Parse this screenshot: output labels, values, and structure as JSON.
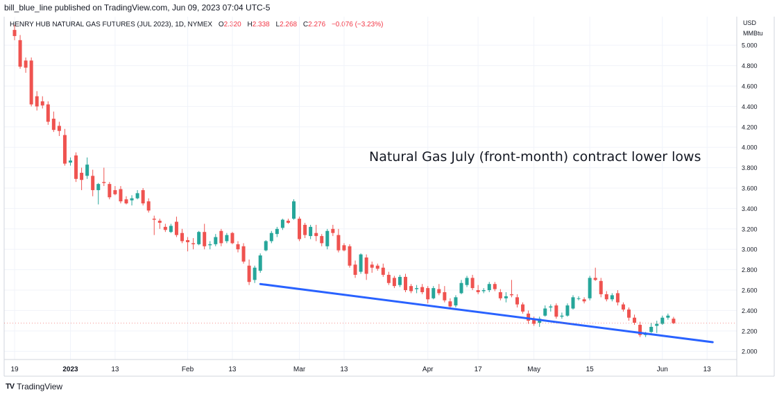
{
  "header": {
    "text": "bill_blue_line published on TradingView.com, Jun 09, 2023 07:04 UTC-5"
  },
  "legend": {
    "symbol": "HENRY HUB NATURAL GAS FUTURES (JUL 2023), 1D, NYMEX",
    "o_label": "O",
    "o": "2.320",
    "h_label": "H",
    "h": "2.338",
    "l_label": "L",
    "l": "2.268",
    "c_label": "C",
    "c": "2.276",
    "change": "−0.076 (−3.23%)"
  },
  "footer": {
    "logo": "TV",
    "brand": "TradingView"
  },
  "colors": {
    "up": "#26a69a",
    "down": "#ef5350",
    "trendline": "#2962ff",
    "grid": "#f0f3fa",
    "axis_text": "#131722"
  },
  "chart_data": {
    "type": "candlestick",
    "title": "",
    "annotation": "Natural Gas July (front-month) contract lower lows",
    "y_unit_line1": "USD",
    "y_unit_line2": "MMBtu",
    "ylim": [
      1.92,
      5.28
    ],
    "y_ticks": [
      "5.000",
      "4.800",
      "4.600",
      "4.400",
      "4.200",
      "4.000",
      "3.800",
      "3.600",
      "3.400",
      "3.200",
      "3.000",
      "2.800",
      "2.600",
      "2.400",
      "2.200",
      "2.000"
    ],
    "x_ticks": [
      {
        "label": "19",
        "i": 0
      },
      {
        "label": "2023",
        "i": 10
      },
      {
        "label": "13",
        "i": 18
      },
      {
        "label": "Feb",
        "i": 31
      },
      {
        "label": "13",
        "i": 39
      },
      {
        "label": "Mar",
        "i": 51
      },
      {
        "label": "13",
        "i": 59
      },
      {
        "label": "Apr",
        "i": 74
      },
      {
        "label": "17",
        "i": 83
      },
      {
        "label": "May",
        "i": 93
      },
      {
        "label": "15",
        "i": 103
      },
      {
        "label": "Jun",
        "i": 116
      },
      {
        "label": "13",
        "i": 124
      }
    ],
    "candles": [
      {
        "o": 5.15,
        "h": 5.2,
        "l": 5.05,
        "c": 5.09
      },
      {
        "o": 5.05,
        "h": 5.1,
        "l": 4.77,
        "c": 4.79
      },
      {
        "o": 4.85,
        "h": 4.88,
        "l": 4.73,
        "c": 4.78
      },
      {
        "o": 4.85,
        "h": 4.88,
        "l": 4.4,
        "c": 4.42
      },
      {
        "o": 4.5,
        "h": 4.55,
        "l": 4.36,
        "c": 4.4
      },
      {
        "o": 4.45,
        "h": 4.5,
        "l": 4.38,
        "c": 4.41
      },
      {
        "o": 4.42,
        "h": 4.45,
        "l": 4.22,
        "c": 4.25
      },
      {
        "o": 4.28,
        "h": 4.35,
        "l": 4.15,
        "c": 4.17
      },
      {
        "o": 4.21,
        "h": 4.25,
        "l": 4.11,
        "c": 4.16
      },
      {
        "o": 4.12,
        "h": 4.18,
        "l": 3.82,
        "c": 3.84
      },
      {
        "o": 3.85,
        "h": 3.9,
        "l": 3.82,
        "c": 3.87
      },
      {
        "o": 3.92,
        "h": 3.95,
        "l": 3.66,
        "c": 3.69
      },
      {
        "o": 3.75,
        "h": 3.8,
        "l": 3.58,
        "c": 3.68
      },
      {
        "o": 3.72,
        "h": 3.9,
        "l": 3.69,
        "c": 3.83
      },
      {
        "o": 3.72,
        "h": 3.78,
        "l": 3.52,
        "c": 3.58
      },
      {
        "o": 3.58,
        "h": 3.65,
        "l": 3.44,
        "c": 3.64
      },
      {
        "o": 3.66,
        "h": 3.8,
        "l": 3.62,
        "c": 3.65
      },
      {
        "o": 3.64,
        "h": 3.66,
        "l": 3.49,
        "c": 3.51
      },
      {
        "o": 3.58,
        "h": 3.62,
        "l": 3.53,
        "c": 3.54
      },
      {
        "o": 3.59,
        "h": 3.62,
        "l": 3.45,
        "c": 3.47
      },
      {
        "o": 3.49,
        "h": 3.52,
        "l": 3.44,
        "c": 3.45
      },
      {
        "o": 3.48,
        "h": 3.53,
        "l": 3.43,
        "c": 3.5
      },
      {
        "o": 3.5,
        "h": 3.58,
        "l": 3.49,
        "c": 3.55
      },
      {
        "o": 3.58,
        "h": 3.6,
        "l": 3.43,
        "c": 3.45
      },
      {
        "o": 3.47,
        "h": 3.5,
        "l": 3.36,
        "c": 3.38
      },
      {
        "o": 3.3,
        "h": 3.33,
        "l": 3.14,
        "c": 3.29
      },
      {
        "o": 3.28,
        "h": 3.3,
        "l": 3.2,
        "c": 3.26
      },
      {
        "o": 3.22,
        "h": 3.25,
        "l": 3.17,
        "c": 3.19
      },
      {
        "o": 3.17,
        "h": 3.25,
        "l": 3.16,
        "c": 3.23
      },
      {
        "o": 3.27,
        "h": 3.32,
        "l": 3.12,
        "c": 3.14
      },
      {
        "o": 3.16,
        "h": 3.2,
        "l": 3.06,
        "c": 3.08
      },
      {
        "o": 3.09,
        "h": 3.12,
        "l": 2.98,
        "c": 3.07
      },
      {
        "o": 3.06,
        "h": 3.11,
        "l": 3.0,
        "c": 3.05
      },
      {
        "o": 3.05,
        "h": 3.18,
        "l": 3.04,
        "c": 3.17
      },
      {
        "o": 3.17,
        "h": 3.25,
        "l": 3.0,
        "c": 3.03
      },
      {
        "o": 3.04,
        "h": 3.08,
        "l": 3.0,
        "c": 3.05
      },
      {
        "o": 3.05,
        "h": 3.15,
        "l": 3.03,
        "c": 3.12
      },
      {
        "o": 3.18,
        "h": 3.2,
        "l": 3.03,
        "c": 3.06
      },
      {
        "o": 3.08,
        "h": 3.16,
        "l": 3.06,
        "c": 3.14
      },
      {
        "o": 3.16,
        "h": 3.17,
        "l": 3.05,
        "c": 3.06
      },
      {
        "o": 3.05,
        "h": 3.08,
        "l": 2.97,
        "c": 3.0
      },
      {
        "o": 3.03,
        "h": 3.06,
        "l": 2.86,
        "c": 2.88
      },
      {
        "o": 2.84,
        "h": 2.9,
        "l": 2.65,
        "c": 2.68
      },
      {
        "o": 2.7,
        "h": 2.84,
        "l": 2.67,
        "c": 2.82
      },
      {
        "o": 2.79,
        "h": 2.96,
        "l": 2.77,
        "c": 2.94
      },
      {
        "o": 2.99,
        "h": 3.09,
        "l": 2.98,
        "c": 3.08
      },
      {
        "o": 3.08,
        "h": 3.18,
        "l": 3.06,
        "c": 3.16
      },
      {
        "o": 3.15,
        "h": 3.22,
        "l": 3.12,
        "c": 3.2
      },
      {
        "o": 3.21,
        "h": 3.3,
        "l": 3.19,
        "c": 3.29
      },
      {
        "o": 3.28,
        "h": 3.3,
        "l": 3.25,
        "c": 3.26
      },
      {
        "o": 3.3,
        "h": 3.49,
        "l": 3.29,
        "c": 3.47
      },
      {
        "o": 3.3,
        "h": 3.32,
        "l": 3.08,
        "c": 3.1
      },
      {
        "o": 3.24,
        "h": 3.26,
        "l": 3.11,
        "c": 3.14
      },
      {
        "o": 3.13,
        "h": 3.24,
        "l": 3.1,
        "c": 3.22
      },
      {
        "o": 3.16,
        "h": 3.24,
        "l": 3.08,
        "c": 3.13
      },
      {
        "o": 3.13,
        "h": 3.15,
        "l": 3.03,
        "c": 3.06
      },
      {
        "o": 3.03,
        "h": 3.2,
        "l": 3.0,
        "c": 3.18
      },
      {
        "o": 3.2,
        "h": 3.24,
        "l": 3.13,
        "c": 3.16
      },
      {
        "o": 3.14,
        "h": 3.2,
        "l": 2.97,
        "c": 2.99
      },
      {
        "o": 3.04,
        "h": 3.06,
        "l": 2.98,
        "c": 2.99
      },
      {
        "o": 3.03,
        "h": 3.05,
        "l": 2.82,
        "c": 2.84
      },
      {
        "o": 2.85,
        "h": 2.89,
        "l": 2.72,
        "c": 2.75
      },
      {
        "o": 2.78,
        "h": 2.96,
        "l": 2.76,
        "c": 2.95
      },
      {
        "o": 2.92,
        "h": 2.95,
        "l": 2.7,
        "c": 2.76
      },
      {
        "o": 2.85,
        "h": 2.88,
        "l": 2.77,
        "c": 2.82
      },
      {
        "o": 2.84,
        "h": 2.86,
        "l": 2.79,
        "c": 2.81
      },
      {
        "o": 2.82,
        "h": 2.86,
        "l": 2.73,
        "c": 2.75
      },
      {
        "o": 2.75,
        "h": 2.78,
        "l": 2.65,
        "c": 2.67
      },
      {
        "o": 2.72,
        "h": 2.74,
        "l": 2.62,
        "c": 2.64
      },
      {
        "o": 2.65,
        "h": 2.75,
        "l": 2.63,
        "c": 2.73
      },
      {
        "o": 2.73,
        "h": 2.76,
        "l": 2.58,
        "c": 2.6
      },
      {
        "o": 2.64,
        "h": 2.66,
        "l": 2.57,
        "c": 2.59
      },
      {
        "o": 2.61,
        "h": 2.65,
        "l": 2.57,
        "c": 2.62
      },
      {
        "o": 2.63,
        "h": 2.66,
        "l": 2.56,
        "c": 2.58
      },
      {
        "o": 2.62,
        "h": 2.64,
        "l": 2.47,
        "c": 2.51
      },
      {
        "o": 2.52,
        "h": 2.64,
        "l": 2.51,
        "c": 2.62
      },
      {
        "o": 2.61,
        "h": 2.66,
        "l": 2.55,
        "c": 2.57
      },
      {
        "o": 2.58,
        "h": 2.64,
        "l": 2.48,
        "c": 2.5
      },
      {
        "o": 2.49,
        "h": 2.52,
        "l": 2.42,
        "c": 2.44
      },
      {
        "o": 2.45,
        "h": 2.55,
        "l": 2.43,
        "c": 2.53
      },
      {
        "o": 2.57,
        "h": 2.7,
        "l": 2.56,
        "c": 2.67
      },
      {
        "o": 2.65,
        "h": 2.74,
        "l": 2.63,
        "c": 2.72
      },
      {
        "o": 2.72,
        "h": 2.75,
        "l": 2.6,
        "c": 2.62
      },
      {
        "o": 2.6,
        "h": 2.65,
        "l": 2.56,
        "c": 2.58
      },
      {
        "o": 2.59,
        "h": 2.62,
        "l": 2.57,
        "c": 2.6
      },
      {
        "o": 2.6,
        "h": 2.68,
        "l": 2.58,
        "c": 2.66
      },
      {
        "o": 2.66,
        "h": 2.68,
        "l": 2.59,
        "c": 2.61
      },
      {
        "o": 2.58,
        "h": 2.61,
        "l": 2.5,
        "c": 2.52
      },
      {
        "o": 2.52,
        "h": 2.58,
        "l": 2.48,
        "c": 2.54
      },
      {
        "o": 2.56,
        "h": 2.7,
        "l": 2.53,
        "c": 2.55
      },
      {
        "o": 2.53,
        "h": 2.56,
        "l": 2.43,
        "c": 2.46
      },
      {
        "o": 2.46,
        "h": 2.48,
        "l": 2.37,
        "c": 2.39
      },
      {
        "o": 2.37,
        "h": 2.4,
        "l": 2.27,
        "c": 2.3
      },
      {
        "o": 2.32,
        "h": 2.34,
        "l": 2.25,
        "c": 2.27
      },
      {
        "o": 2.28,
        "h": 2.34,
        "l": 2.24,
        "c": 2.32
      },
      {
        "o": 2.35,
        "h": 2.45,
        "l": 2.34,
        "c": 2.42
      },
      {
        "o": 2.43,
        "h": 2.46,
        "l": 2.39,
        "c": 2.44
      },
      {
        "o": 2.45,
        "h": 2.47,
        "l": 2.32,
        "c": 2.34
      },
      {
        "o": 2.34,
        "h": 2.38,
        "l": 2.32,
        "c": 2.35
      },
      {
        "o": 2.35,
        "h": 2.47,
        "l": 2.34,
        "c": 2.45
      },
      {
        "o": 2.42,
        "h": 2.55,
        "l": 2.41,
        "c": 2.53
      },
      {
        "o": 2.52,
        "h": 2.54,
        "l": 2.5,
        "c": 2.52
      },
      {
        "o": 2.51,
        "h": 2.53,
        "l": 2.47,
        "c": 2.49
      },
      {
        "o": 2.52,
        "h": 2.74,
        "l": 2.5,
        "c": 2.72
      },
      {
        "o": 2.72,
        "h": 2.82,
        "l": 2.69,
        "c": 2.7
      },
      {
        "o": 2.69,
        "h": 2.72,
        "l": 2.53,
        "c": 2.56
      },
      {
        "o": 2.56,
        "h": 2.59,
        "l": 2.49,
        "c": 2.51
      },
      {
        "o": 2.51,
        "h": 2.57,
        "l": 2.49,
        "c": 2.55
      },
      {
        "o": 2.57,
        "h": 2.6,
        "l": 2.45,
        "c": 2.48
      },
      {
        "o": 2.46,
        "h": 2.48,
        "l": 2.39,
        "c": 2.41
      },
      {
        "o": 2.41,
        "h": 2.43,
        "l": 2.3,
        "c": 2.33
      },
      {
        "o": 2.33,
        "h": 2.36,
        "l": 2.26,
        "c": 2.28
      },
      {
        "o": 2.26,
        "h": 2.29,
        "l": 2.14,
        "c": 2.16
      },
      {
        "o": 2.16,
        "h": 2.19,
        "l": 2.14,
        "c": 2.17
      },
      {
        "o": 2.19,
        "h": 2.28,
        "l": 2.18,
        "c": 2.24
      },
      {
        "o": 2.25,
        "h": 2.3,
        "l": 2.18,
        "c": 2.27
      },
      {
        "o": 2.27,
        "h": 2.35,
        "l": 2.26,
        "c": 2.33
      },
      {
        "o": 2.33,
        "h": 2.37,
        "l": 2.31,
        "c": 2.35
      },
      {
        "o": 2.32,
        "h": 2.338,
        "l": 2.268,
        "c": 2.276
      }
    ],
    "trendline": [
      {
        "i": 44,
        "v": 2.66
      },
      {
        "i": 125,
        "v": 2.09
      }
    ]
  }
}
